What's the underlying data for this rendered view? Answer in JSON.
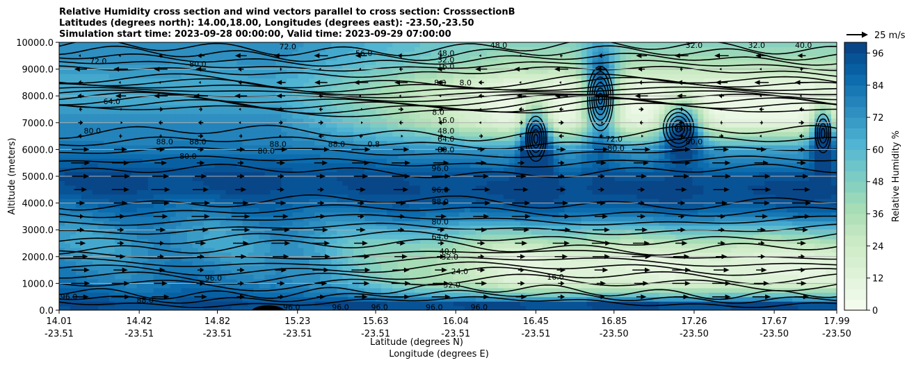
{
  "chart_data": {
    "type": "heatmap",
    "title_lines": [
      "Relative Humidity cross section and wind vectors parallel to cross section: CrosssectionB",
      "Latitudes (degrees north): 14.00,18.00, Longitudes (degrees east): -23.50,-23.50",
      "Simulation start time: 2023-09-28 00:00:00, Valid time: 2023-09-29 07:00:00"
    ],
    "ylabel": "Altitude (meters)",
    "xlabel_lat": "Latitude (degrees N)",
    "xlabel_lon": "Longitude (degrees E)",
    "ylim": [
      0,
      10000
    ],
    "yticks": [
      "0.0",
      "1000.0",
      "2000.0",
      "3000.0",
      "4000.0",
      "5000.0",
      "6000.0",
      "7000.0",
      "8000.0",
      "9000.0",
      "10000.0"
    ],
    "xrange_lat": [
      14.01,
      17.99
    ],
    "xticks": [
      {
        "lat": "14.01",
        "lon": "-23.51"
      },
      {
        "lat": "14.42",
        "lon": "-23.51"
      },
      {
        "lat": "14.82",
        "lon": "-23.51"
      },
      {
        "lat": "15.23",
        "lon": "-23.51"
      },
      {
        "lat": "15.63",
        "lon": "-23.51"
      },
      {
        "lat": "16.04",
        "lon": "-23.51"
      },
      {
        "lat": "16.45",
        "lon": "-23.51"
      },
      {
        "lat": "16.85",
        "lon": "-23.50"
      },
      {
        "lat": "17.26",
        "lon": "-23.50"
      },
      {
        "lat": "17.67",
        "lon": "-23.50"
      },
      {
        "lat": "17.99",
        "lon": "-23.50"
      }
    ],
    "colorbar": {
      "label": "Relative Humidity %",
      "range": [
        0,
        100
      ],
      "ticks": [
        "0",
        "12",
        "24",
        "36",
        "48",
        "60",
        "72",
        "84",
        "96"
      ],
      "colormap": "GnBu",
      "levels_step": 4
    },
    "quiver_key": "25 m/s",
    "profile": {
      "altitudes_m": [
        0,
        250,
        500,
        1000,
        1500,
        2000,
        2500,
        3000,
        3500,
        4000,
        4500,
        5000,
        5500,
        6000,
        6500,
        7000,
        7500,
        8000,
        8500,
        9000,
        9500,
        10000
      ],
      "left_rh": [
        94,
        96,
        90,
        82,
        78,
        74,
        70,
        74,
        80,
        88,
        96,
        97,
        90,
        82,
        78,
        76,
        70,
        64,
        66,
        70,
        74,
        76
      ],
      "right_rh": [
        96,
        96,
        60,
        16,
        12,
        14,
        30,
        55,
        80,
        94,
        97,
        94,
        80,
        70,
        40,
        10,
        5,
        5,
        12,
        30,
        40,
        45
      ]
    },
    "contour_labels": [
      {
        "text": "96.0",
        "lat": 14.06,
        "alt": 500
      },
      {
        "text": "88.0",
        "lat": 14.45,
        "alt": 380
      },
      {
        "text": "96.0",
        "lat": 14.8,
        "alt": 1200
      },
      {
        "text": "96.0",
        "lat": 15.2,
        "alt": 120
      },
      {
        "text": "96.0",
        "lat": 15.45,
        "alt": 120
      },
      {
        "text": "96.0",
        "lat": 15.65,
        "alt": 120
      },
      {
        "text": "96.0",
        "lat": 15.93,
        "alt": 120
      },
      {
        "text": "96.0",
        "lat": 16.16,
        "alt": 120
      },
      {
        "text": "32.0",
        "lat": 16.01,
        "alt": 2000
      },
      {
        "text": "32.0",
        "lat": 16.02,
        "alt": 950
      },
      {
        "text": "24.0",
        "lat": 16.06,
        "alt": 1450
      },
      {
        "text": "40.0",
        "lat": 16.0,
        "alt": 2200
      },
      {
        "text": "16.0",
        "lat": 16.55,
        "alt": 1250
      },
      {
        "text": "64.0",
        "lat": 15.96,
        "alt": 2750
      },
      {
        "text": "80.0",
        "lat": 15.96,
        "alt": 3300
      },
      {
        "text": "88.0",
        "lat": 15.96,
        "alt": 4050
      },
      {
        "text": "96.0",
        "lat": 15.96,
        "alt": 4500
      },
      {
        "text": "96.0",
        "lat": 15.96,
        "alt": 5300
      },
      {
        "text": "80.0",
        "lat": 14.67,
        "alt": 5750
      },
      {
        "text": "80.0",
        "lat": 15.07,
        "alt": 5950
      },
      {
        "text": "88.0",
        "lat": 14.55,
        "alt": 6300
      },
      {
        "text": "88.0",
        "lat": 14.72,
        "alt": 6300
      },
      {
        "text": "88.0",
        "lat": 15.13,
        "alt": 6200
      },
      {
        "text": "88.0",
        "lat": 15.43,
        "alt": 6200
      },
      {
        "text": "0.8",
        "lat": 15.62,
        "alt": 6200
      },
      {
        "text": "80.0",
        "lat": 14.18,
        "alt": 6700
      },
      {
        "text": "80.0",
        "lat": 15.99,
        "alt": 6000
      },
      {
        "text": "64.0",
        "lat": 15.99,
        "alt": 6400
      },
      {
        "text": "48.0",
        "lat": 15.99,
        "alt": 6700
      },
      {
        "text": "16.0",
        "lat": 15.99,
        "alt": 7100
      },
      {
        "text": "8.0",
        "lat": 15.95,
        "alt": 7400
      },
      {
        "text": "8.0",
        "lat": 15.96,
        "alt": 8500
      },
      {
        "text": "8.0",
        "lat": 16.09,
        "alt": 8500
      },
      {
        "text": "16.0",
        "lat": 15.99,
        "alt": 9100
      },
      {
        "text": "32.0",
        "lat": 15.99,
        "alt": 9350
      },
      {
        "text": "48.0",
        "lat": 15.99,
        "alt": 9600
      },
      {
        "text": "48.0",
        "lat": 16.26,
        "alt": 9900
      },
      {
        "text": "56.0",
        "lat": 15.57,
        "alt": 9600
      },
      {
        "text": "72.0",
        "lat": 15.18,
        "alt": 9850
      },
      {
        "text": "80.0",
        "lat": 14.72,
        "alt": 9200
      },
      {
        "text": "72.0",
        "lat": 14.21,
        "alt": 9300
      },
      {
        "text": "64.0",
        "lat": 14.28,
        "alt": 7800
      },
      {
        "text": "72.0",
        "lat": 16.85,
        "alt": 6400
      },
      {
        "text": "80.0",
        "lat": 16.86,
        "alt": 6050
      },
      {
        "text": "96.0",
        "lat": 17.2,
        "alt": 6800
      },
      {
        "text": "80.0",
        "lat": 17.26,
        "alt": 6300
      },
      {
        "text": "32.0",
        "lat": 17.26,
        "alt": 9900
      },
      {
        "text": "32.0",
        "lat": 17.58,
        "alt": 9900
      },
      {
        "text": "40.0",
        "lat": 17.82,
        "alt": 9900
      }
    ]
  }
}
